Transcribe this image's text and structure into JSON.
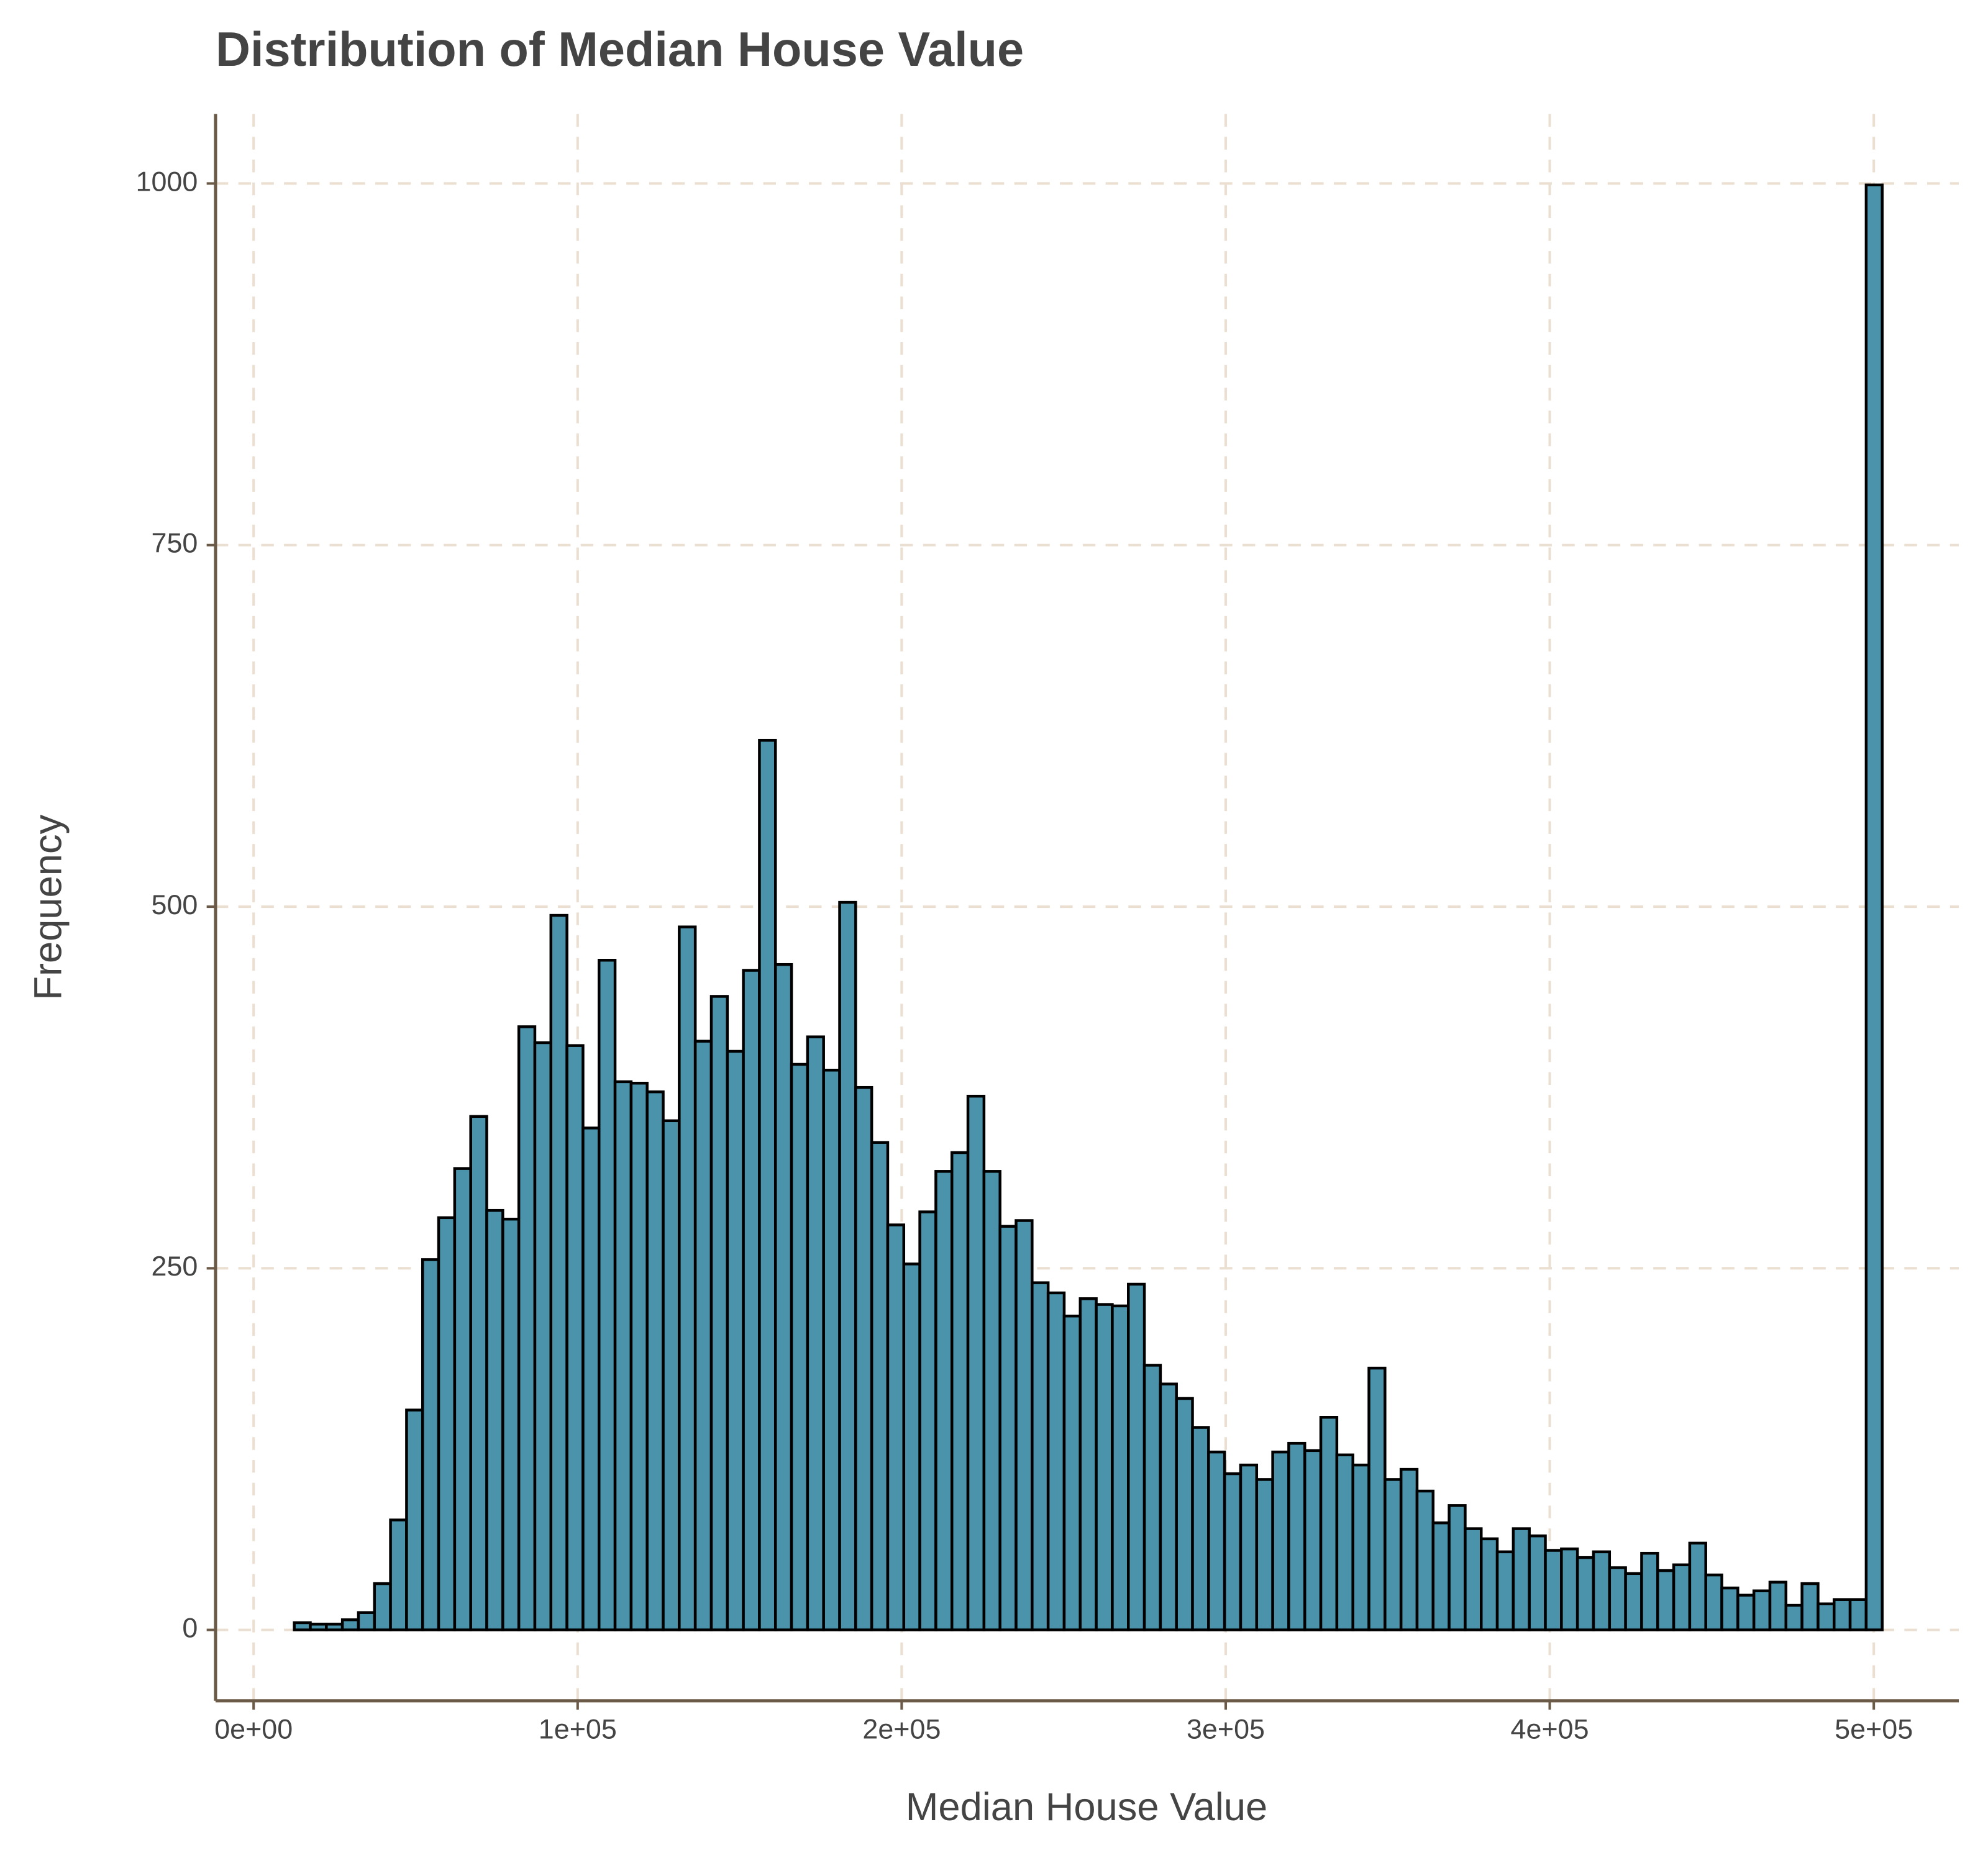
{
  "chart_data": {
    "type": "histogram",
    "title": "Distribution of Median House Value",
    "x_label": "Median House Value",
    "y_label": "Frequency",
    "color": "#4a93ab",
    "edge_color": "#000000",
    "grid": true,
    "bins": [
      12550,
      17500,
      22450,
      27400,
      32350,
      37300,
      42250,
      47200,
      52150,
      57100,
      62050,
      67000,
      71950,
      76900,
      81850,
      86800,
      91750,
      96700,
      101650,
      106600,
      111550,
      116500,
      121450,
      126400,
      131350,
      136300,
      141250,
      146200,
      151150,
      156100,
      161050,
      166000,
      170950,
      175900,
      180850,
      185800,
      190750,
      195700,
      200650,
      205600,
      210550,
      215500,
      220450,
      225400,
      230350,
      235300,
      240250,
      245200,
      250150,
      255100,
      260050,
      265000,
      269950,
      274900,
      279850,
      284800,
      289750,
      294700,
      299650,
      304600,
      309550,
      314500,
      319450,
      324400,
      329350,
      334300,
      339250,
      344200,
      349150,
      354100,
      359050,
      364000,
      368950,
      373900,
      378850,
      383800,
      388750,
      393700,
      398650,
      403600,
      408550,
      413500,
      418450,
      423400,
      428350,
      433300,
      438250,
      443200,
      448150,
      453100,
      458050,
      463000,
      467950,
      472900,
      477850,
      482800,
      487750,
      492700,
      497650,
      502600
    ],
    "counts": [
      5,
      4,
      4,
      7,
      12,
      32,
      76,
      152,
      256,
      285,
      319,
      355,
      290,
      284,
      417,
      406,
      494,
      404,
      347,
      463,
      379,
      378,
      372,
      352,
      486,
      407,
      438,
      400,
      456,
      615,
      460,
      391,
      410,
      387,
      503,
      375,
      337,
      280,
      253,
      289,
      317,
      330,
      369,
      317,
      279,
      283,
      240,
      233,
      217,
      229,
      225,
      224,
      239,
      183,
      170,
      160,
      140,
      123,
      108,
      114,
      104,
      123,
      129,
      124,
      147,
      121,
      114,
      181,
      104,
      111,
      96,
      74,
      86,
      70,
      63,
      54,
      70,
      65,
      55,
      56,
      50,
      54,
      43,
      39,
      53,
      41,
      45,
      60,
      38,
      29,
      24,
      27,
      33,
      17,
      32,
      18,
      21,
      21,
      999
    ],
    "xlim": [
      -11750,
      526250
    ],
    "ylim": [
      -49,
      1048
    ],
    "xticks": [
      {
        "value": 0,
        "label": "0e+00"
      },
      {
        "value": 100000,
        "label": "1e+05"
      },
      {
        "value": 200000,
        "label": "2e+05"
      },
      {
        "value": 300000,
        "label": "3e+05"
      },
      {
        "value": 400000,
        "label": "4e+05"
      },
      {
        "value": 500000,
        "label": "5e+05"
      }
    ],
    "yticks": [
      0,
      250,
      500,
      750,
      1000
    ]
  }
}
